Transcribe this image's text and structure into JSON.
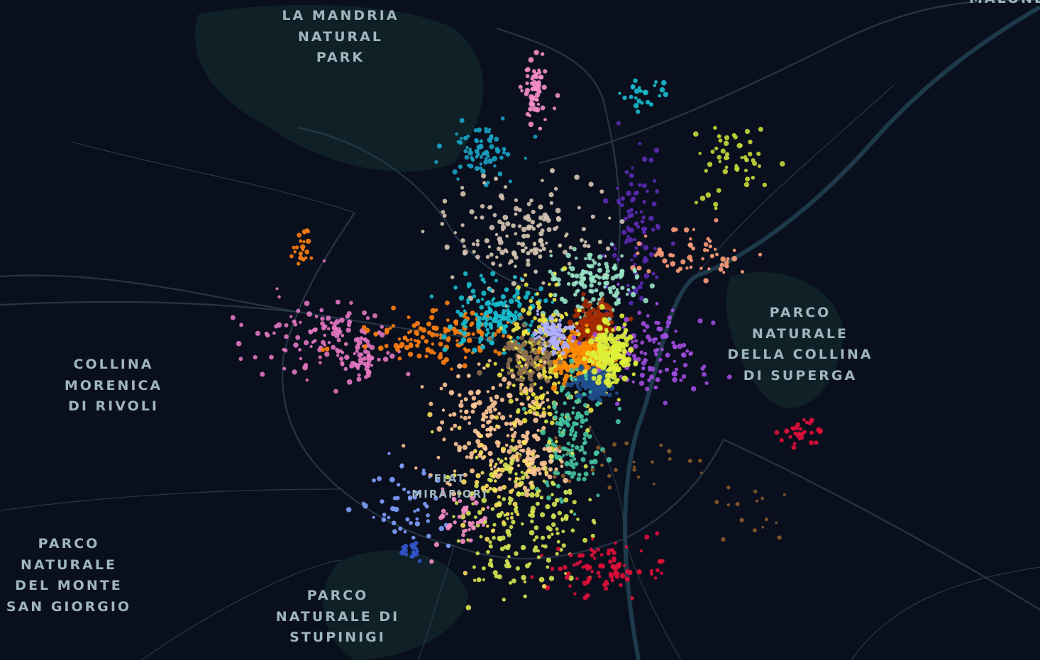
{
  "map": {
    "labels": [
      {
        "id": "la-mandria",
        "text": "LA MANDRIA\nNATURAL\nPARK"
      },
      {
        "id": "malone",
        "text": "MALONE"
      },
      {
        "id": "collina-morenica",
        "text": "COLLINA\nMORENICA\nDI RIVOLI"
      },
      {
        "id": "parco-superga",
        "text": "PARCO\nNATURALE\nDELLA COLLINA\nDI SUPERGA"
      },
      {
        "id": "fiat-mirafiori",
        "text": "FIAT\nMIRAFIORI"
      },
      {
        "id": "parco-san-giorgio",
        "text": "PARCO\nNATURALE\nDEL MONTE\nSAN GIORGIO"
      },
      {
        "id": "parco-stupinigi",
        "text": "PARCO\nNATURALE DI\nSTUPINIGI"
      }
    ],
    "colors": {
      "background": "#0a0f1d",
      "park": "#0f2027",
      "road": "#2c3e50",
      "water": "#1d3a4a",
      "label": "#9fb6bf"
    },
    "cluster_palette": [
      "#f78fc8",
      "#1aa3c7",
      "#e377c2",
      "#ff7f0e",
      "#d6c7b3",
      "#17becf",
      "#5b2bb5",
      "#c7d93a",
      "#ff9e7a",
      "#99e6c8",
      "#a52a00",
      "#f0e442",
      "#ff8c00",
      "#b0b0ff",
      "#8c6d4f",
      "#1f4e8c",
      "#a04de0",
      "#ffc896",
      "#dff03a",
      "#45c4a0",
      "#e0103a",
      "#d6e652",
      "#3355cc",
      "#8a5a2a",
      "#7fa0ff",
      "#f7b27a",
      "#ffe060"
    ]
  }
}
